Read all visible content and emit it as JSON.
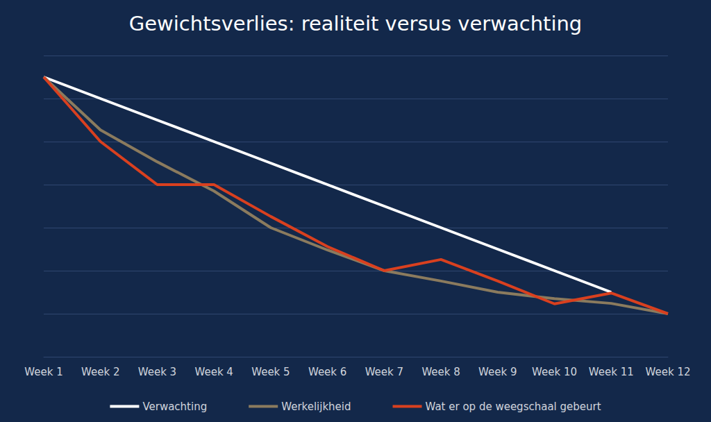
{
  "chart_data": {
    "type": "line",
    "title": "Gewichtsverlies: realiteit versus verwachting",
    "categories": [
      "Week 1",
      "Week 2",
      "Week 3",
      "Week 4",
      "Week 5",
      "Week 6",
      "Week 7",
      "Week 8",
      "Week 9",
      "Week 10",
      "Week 11",
      "Week 12"
    ],
    "series": [
      {
        "name": "Verwachting",
        "color": "#ffffff",
        "values": [
          6.5,
          6.0,
          5.5,
          5.0,
          4.5,
          4.0,
          3.5,
          3.0,
          2.5,
          2.0,
          1.5,
          null
        ]
      },
      {
        "name": "Werkelijkheid",
        "color": "#8b7b5e",
        "values": [
          6.5,
          5.27,
          4.53,
          3.85,
          3.0,
          2.48,
          2.0,
          1.76,
          1.5,
          1.35,
          1.24,
          1.0
        ]
      },
      {
        "name": "Wat er op de weegschaal gebeurt",
        "color": "#d9401f",
        "values": [
          6.5,
          5.0,
          4.0,
          4.0,
          3.26,
          2.56,
          2.0,
          2.26,
          1.76,
          1.23,
          1.48,
          1.0
        ]
      }
    ],
    "ylim": [
      0,
      7
    ],
    "yticks": [
      0,
      1,
      2,
      3,
      4,
      5,
      6,
      7
    ],
    "grid": true,
    "legend": "bottom",
    "tick_labels": "x"
  }
}
